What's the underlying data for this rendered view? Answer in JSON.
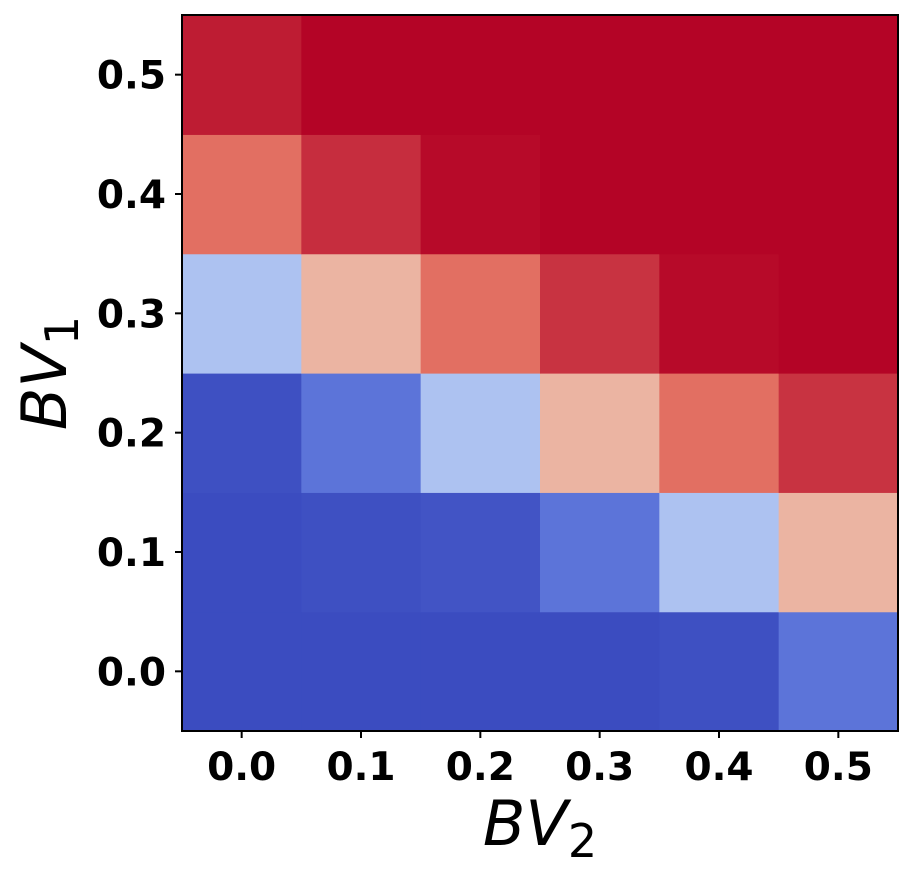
{
  "chart_data": {
    "type": "heatmap",
    "colormap": "coolwarm",
    "x": [
      0.0,
      0.1,
      0.2,
      0.3,
      0.4,
      0.5
    ],
    "y": [
      0.0,
      0.1,
      0.2,
      0.3,
      0.4,
      0.5
    ],
    "x_tick_labels": [
      "0.0",
      "0.1",
      "0.2",
      "0.3",
      "0.4",
      "0.5"
    ],
    "y_tick_labels": [
      "0.0",
      "0.1",
      "0.2",
      "0.3",
      "0.4",
      "0.5"
    ],
    "xlabel": {
      "base": "BV",
      "sub": "2"
    },
    "ylabel": {
      "base": "BV",
      "sub": "1"
    },
    "values": [
      [
        0.0,
        0.0,
        0.0,
        0.0,
        0.01,
        0.1
      ],
      [
        0.0,
        0.01,
        0.02,
        0.1,
        0.35,
        0.65
      ],
      [
        0.01,
        0.1,
        0.35,
        0.65,
        0.82,
        0.92
      ],
      [
        0.35,
        0.65,
        0.82,
        0.92,
        0.99,
        1.0
      ],
      [
        0.82,
        0.93,
        0.99,
        1.0,
        1.0,
        1.0
      ],
      [
        0.96,
        1.0,
        1.0,
        1.0,
        1.0,
        1.0
      ]
    ],
    "value_range": [
      0,
      1
    ],
    "grid": false,
    "legend": "none"
  }
}
